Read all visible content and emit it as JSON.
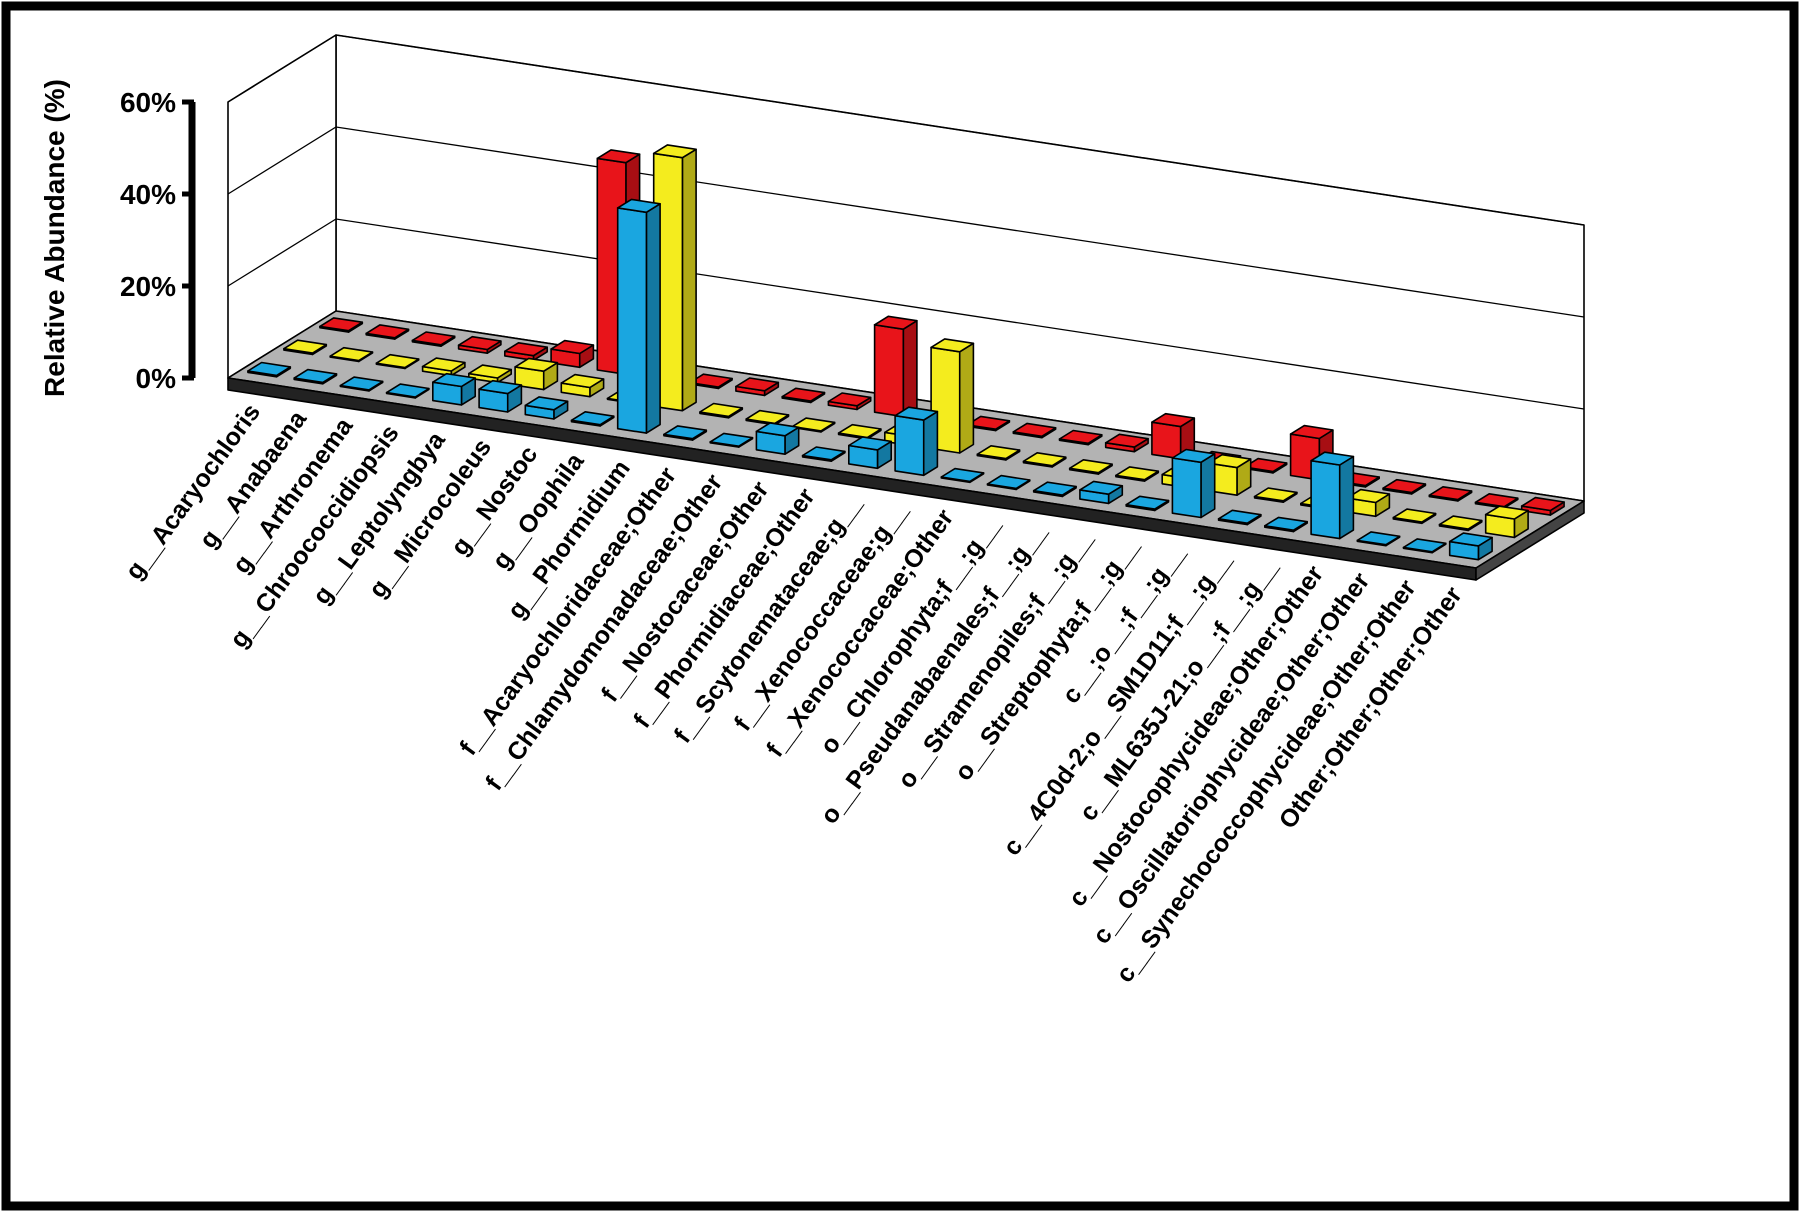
{
  "chart_data": {
    "type": "bar",
    "subtype": "3d-column",
    "title": "",
    "xlabel": "",
    "ylabel": "Relative Abundance (%)",
    "ylim": [
      0,
      60
    ],
    "yticks": [
      "0%",
      "20%",
      "40%",
      "60%"
    ],
    "grid": true,
    "legend": "none",
    "categories": [
      "g__Acaryochloris",
      "g__Anabaena",
      "g__Arthronema",
      "g__Chroococcidiopsis",
      "g__Leptolyngbya",
      "g__Microcoleus",
      "g__Nostoc",
      "g__Oophila",
      "g__Phormidium",
      "f__Acaryochloridaceae;Other",
      "f__Chlamydomonadaceae;Other",
      "f__Nostocaceae;Other",
      "f__Phormidiaceae;Other",
      "f__Scytonemataceae;g__",
      "f__Xenococcaceae;g__",
      "f__Xenococcaceae;Other",
      "o__Chlorophyta;f__;g__",
      "o__Pseudanabaenales;f__;g__",
      "o__Stramenopiles;f__;g__",
      "o__Streptophyta;f__;g__",
      "c__;o__;f__;g__",
      "c__4C0d-2;o__SM1D11;f__;g__",
      "c__ML635J-21;o__;f__;g__",
      "c__Nostocophycideae;Other;Other",
      "c__Oscillatoriophycideae;Other;Other",
      "c__Synechococcophycideae;Other;Other",
      "Other;Other;Other;Other"
    ],
    "series": [
      {
        "color": "#1aa6e0",
        "values": [
          0.3,
          0.3,
          0.2,
          0.2,
          4,
          4,
          2,
          0.3,
          48,
          0.3,
          0.2,
          4,
          0.3,
          4,
          12,
          0.2,
          0.2,
          0.3,
          2,
          0.3,
          12,
          0.3,
          0.3,
          16,
          0.2,
          0.2,
          3
        ]
      },
      {
        "color": "#f4ec1e",
        "values": [
          0.3,
          0.2,
          0.2,
          1,
          1,
          4,
          2,
          0.2,
          55,
          0.3,
          0.3,
          0.2,
          0.3,
          2,
          22,
          0.3,
          0.3,
          0.3,
          0.3,
          2,
          6,
          0.3,
          0.3,
          3,
          0.3,
          0.3,
          4
        ]
      },
      {
        "color": "#e8141a",
        "values": [
          0.3,
          0.3,
          0.3,
          0.8,
          1,
          3,
          46,
          0.3,
          0.3,
          1,
          0.3,
          0.8,
          19,
          0.3,
          0.3,
          0.3,
          0.3,
          1,
          7,
          0.3,
          0.3,
          9,
          0.3,
          0.3,
          0.3,
          0.3,
          1
        ]
      }
    ]
  }
}
